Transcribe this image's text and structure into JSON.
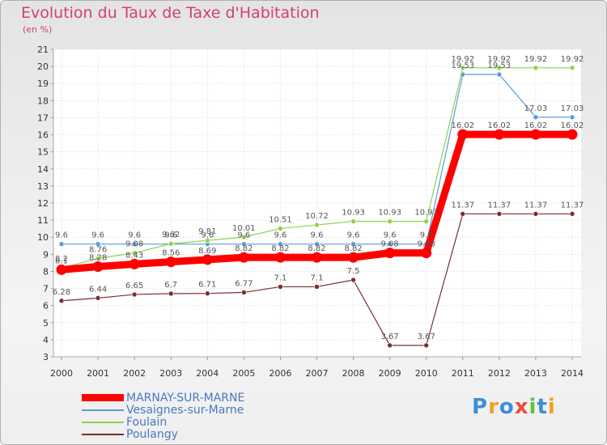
{
  "title": "Evolution du Taux de Taxe d'Habitation",
  "unit": "(en %)",
  "logo": {
    "text": "Proxiti",
    "colors": [
      "#3a8fd8",
      "#f5a020",
      "#3a8fd8",
      "#e84d3c",
      "#6cbf3a",
      "#3a8fd8",
      "#f5a020"
    ]
  },
  "chart_data": {
    "type": "line",
    "title": "Evolution du Taux de Taxe d'Habitation",
    "ylabel": "(en %)",
    "xlabel": "",
    "x": [
      "2000",
      "2001",
      "2002",
      "2003",
      "2004",
      "2005",
      "2006",
      "2007",
      "2008",
      "2009",
      "2010",
      "2011",
      "2012",
      "2013",
      "2014"
    ],
    "ylim": [
      3,
      21
    ],
    "yticks": [
      "3",
      "4",
      "5",
      "6",
      "7",
      "8",
      "9",
      "10",
      "11",
      "12",
      "13",
      "14",
      "15",
      "16",
      "17",
      "18",
      "19",
      "20",
      "21"
    ],
    "grid": true,
    "legend_position": "bottom-left",
    "series": [
      {
        "name": "MARNAY-SUR-MARNE",
        "color": "#ff0000",
        "values": [
          8.1,
          8.28,
          8.43,
          8.56,
          8.69,
          8.82,
          8.82,
          8.82,
          8.82,
          9.08,
          9.08,
          16.02,
          16.02,
          16.02,
          16.02
        ],
        "labels": [
          "8.1",
          "8.28",
          "8.43",
          "8.56",
          "8.69",
          "8.82",
          "8.82",
          "8.82",
          "8.82",
          "9.08",
          "9.08",
          "16.02",
          "16.02",
          "16.02",
          "16.02"
        ]
      },
      {
        "name": "Vesaignes-sur-Marne",
        "color": "#5b9bd5",
        "values": [
          9.6,
          9.6,
          9.6,
          9.6,
          9.6,
          9.6,
          9.6,
          9.6,
          9.6,
          9.6,
          9.6,
          19.53,
          19.53,
          17.03,
          17.03
        ],
        "labels": [
          "9.6",
          "9.6",
          "9.6",
          "9.6",
          "9.6",
          "9.6",
          "9.6",
          "9.6",
          "9.6",
          "9.6",
          "9.6",
          "19.53",
          "19.53",
          "17.03",
          "17.03"
        ]
      },
      {
        "name": "Foulain",
        "color": "#8fd14f",
        "values": [
          8.2,
          8.76,
          9.08,
          9.62,
          9.81,
          10.01,
          10.51,
          10.72,
          10.93,
          10.93,
          10.93,
          19.92,
          19.92,
          19.92,
          19.92
        ],
        "labels": [
          "8.2",
          "8.76",
          "9.08",
          "9.62",
          "9.81",
          "10.01",
          "10.51",
          "10.72",
          "10.93",
          "10.93",
          "10.93",
          "19.92",
          "19.92",
          "19.92",
          "19.92"
        ]
      },
      {
        "name": "Poulangy",
        "color": "#7a2e2e",
        "values": [
          6.28,
          6.44,
          6.65,
          6.7,
          6.71,
          6.77,
          7.1,
          7.1,
          7.5,
          3.67,
          3.67,
          11.37,
          11.37,
          11.37,
          11.37
        ],
        "labels": [
          "6.28",
          "6.44",
          "6.65",
          "6.7",
          "6.71",
          "6.77",
          "7.1",
          "7.1",
          "7.5",
          "3.67",
          "3.67",
          "11.37",
          "11.37",
          "11.37",
          "11.37"
        ]
      }
    ]
  }
}
